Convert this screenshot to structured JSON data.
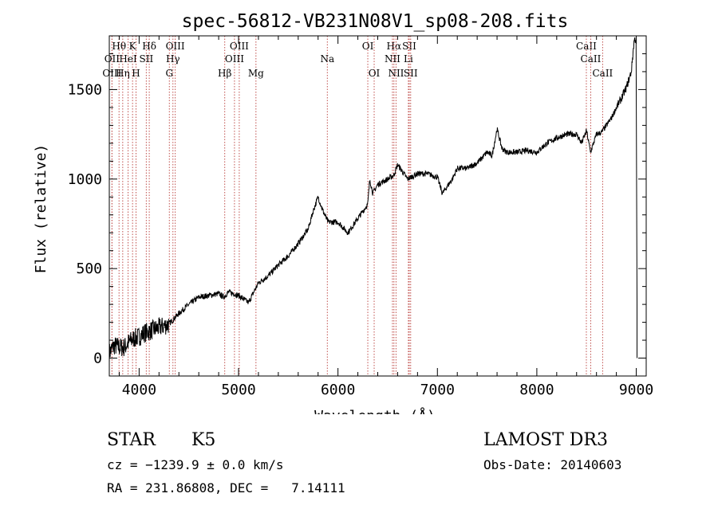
{
  "chart_data": {
    "type": "line",
    "title": "spec-56812-VB231N08V1_sp08-208.fits",
    "xlabel": "Wavelength (Å)",
    "ylabel": "Flux (relative)",
    "xlim": [
      3700,
      9100
    ],
    "ylim": [
      -100,
      1800
    ],
    "xticks": [
      4000,
      5000,
      6000,
      7000,
      8000,
      9000
    ],
    "yticks": [
      0,
      500,
      1000,
      1500
    ],
    "series": [
      {
        "name": "flux",
        "x": [
          3700,
          3750,
          3800,
          3850,
          3900,
          3950,
          4000,
          4050,
          4100,
          4150,
          4200,
          4250,
          4300,
          4400,
          4500,
          4600,
          4700,
          4800,
          4850,
          4900,
          5000,
          5100,
          5200,
          5300,
          5400,
          5500,
          5600,
          5700,
          5750,
          5800,
          5850,
          5900,
          6000,
          6100,
          6200,
          6300,
          6320,
          6350,
          6400,
          6500,
          6560,
          6600,
          6700,
          6800,
          6900,
          7000,
          7050,
          7100,
          7150,
          7200,
          7300,
          7400,
          7500,
          7550,
          7600,
          7650,
          7700,
          7800,
          7900,
          8000,
          8100,
          8200,
          8300,
          8400,
          8450,
          8500,
          8540,
          8600,
          8650,
          8700,
          8750,
          8800,
          8850,
          8900,
          8950,
          8980,
          9000
        ],
        "y": [
          30,
          70,
          60,
          60,
          90,
          110,
          120,
          140,
          150,
          160,
          170,
          180,
          190,
          250,
          300,
          340,
          350,
          360,
          340,
          370,
          350,
          310,
          420,
          460,
          520,
          570,
          640,
          720,
          820,
          900,
          820,
          760,
          760,
          700,
          780,
          860,
          1000,
          920,
          970,
          1000,
          1020,
          1080,
          1000,
          1030,
          1030,
          1010,
          920,
          960,
          1000,
          1060,
          1060,
          1090,
          1150,
          1130,
          1280,
          1170,
          1150,
          1150,
          1160,
          1150,
          1200,
          1230,
          1250,
          1250,
          1200,
          1270,
          1150,
          1250,
          1260,
          1300,
          1340,
          1400,
          1450,
          1510,
          1600,
          1780,
          1780
        ]
      }
    ],
    "lines": [
      {
        "label": "Hθ",
        "x": 3798,
        "row": 1
      },
      {
        "label": "OII",
        "x": 3727,
        "row": 2
      },
      {
        "label": "OIII",
        "x": 3727,
        "row": 3
      },
      {
        "label": "K",
        "x": 3934,
        "row": 1
      },
      {
        "label": "HeI",
        "x": 3889,
        "row": 2
      },
      {
        "label": "Hη",
        "x": 3835,
        "row": 3
      },
      {
        "label": "H",
        "x": 3969,
        "row": 3
      },
      {
        "label": "Hδ",
        "x": 4102,
        "row": 1
      },
      {
        "label": "SII",
        "x": 4072,
        "row": 2
      },
      {
        "label": "OIII",
        "x": 4363,
        "row": 1
      },
      {
        "label": "Hγ",
        "x": 4340,
        "row": 2
      },
      {
        "label": "G",
        "x": 4304,
        "row": 3
      },
      {
        "label": "Hβ",
        "x": 4861,
        "row": 3
      },
      {
        "label": "OIII",
        "x": 5007,
        "row": 1
      },
      {
        "label": "OIII",
        "x": 4959,
        "row": 2
      },
      {
        "label": "Mg",
        "x": 5175,
        "row": 3
      },
      {
        "label": "Na",
        "x": 5893,
        "row": 2
      },
      {
        "label": "OI",
        "x": 6300,
        "row": 1
      },
      {
        "label": "OI",
        "x": 6364,
        "row": 3
      },
      {
        "label": "Hα",
        "x": 6563,
        "row": 1
      },
      {
        "label": "NII",
        "x": 6548,
        "row": 2
      },
      {
        "label": "NII",
        "x": 6584,
        "row": 3
      },
      {
        "label": "SII",
        "x": 6717,
        "row": 1
      },
      {
        "label": "Li",
        "x": 6708,
        "row": 2
      },
      {
        "label": "SII",
        "x": 6731,
        "row": 3
      },
      {
        "label": "CaII",
        "x": 8498,
        "row": 1
      },
      {
        "label": "CaII",
        "x": 8542,
        "row": 2
      },
      {
        "label": "CaII",
        "x": 8662,
        "row": 3
      }
    ]
  },
  "info": {
    "class_label": "STAR",
    "subclass": "K5",
    "survey": "LAMOST DR3",
    "cz": "cz = −1239.9 ± 0.0 km/s",
    "obs_date": "Obs-Date: 20140603",
    "coords": "RA = 231.86808, DEC =   7.14111"
  },
  "colors": {
    "spectrum": "#000000",
    "line_markers": "#c0504d",
    "axes": "#000000"
  }
}
